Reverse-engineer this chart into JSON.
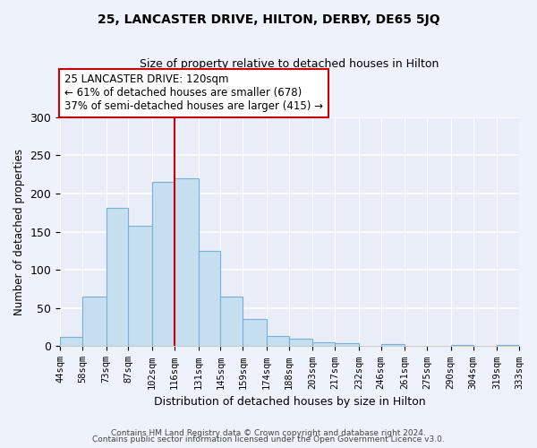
{
  "title": "25, LANCASTER DRIVE, HILTON, DERBY, DE65 5JQ",
  "subtitle": "Size of property relative to detached houses in Hilton",
  "xlabel": "Distribution of detached houses by size in Hilton",
  "ylabel": "Number of detached properties",
  "bin_labels": [
    "44sqm",
    "58sqm",
    "73sqm",
    "87sqm",
    "102sqm",
    "116sqm",
    "131sqm",
    "145sqm",
    "159sqm",
    "174sqm",
    "188sqm",
    "203sqm",
    "217sqm",
    "232sqm",
    "246sqm",
    "261sqm",
    "275sqm",
    "290sqm",
    "304sqm",
    "319sqm",
    "333sqm"
  ],
  "bar_values": [
    12,
    65,
    181,
    158,
    215,
    220,
    125,
    65,
    36,
    14,
    10,
    5,
    4,
    0,
    3,
    0,
    0,
    2,
    0,
    2
  ],
  "bar_color": "#c5dff0",
  "bar_edgecolor": "#7bafd4",
  "vline_x": 116,
  "vline_color": "#cc0000",
  "ylim": [
    0,
    300
  ],
  "yticks": [
    0,
    50,
    100,
    150,
    200,
    250,
    300
  ],
  "annotation_title": "25 LANCASTER DRIVE: 120sqm",
  "annotation_line1": "← 61% of detached houses are smaller (678)",
  "annotation_line2": "37% of semi-detached houses are larger (415) →",
  "annotation_box_color": "#ffffff",
  "annotation_box_edgecolor": "#cc0000",
  "footer_line1": "Contains HM Land Registry data © Crown copyright and database right 2024.",
  "footer_line2": "Contains public sector information licensed under the Open Government Licence v3.0.",
  "bin_edges": [
    44,
    58,
    73,
    87,
    102,
    116,
    131,
    145,
    159,
    174,
    188,
    203,
    217,
    232,
    246,
    261,
    275,
    290,
    304,
    319,
    333
  ],
  "fig_bg_color": "#eef2fa",
  "plot_bg_color": "#e8edf8"
}
